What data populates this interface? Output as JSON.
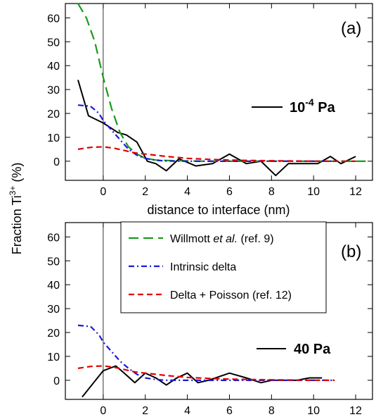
{
  "chart_data": [
    {
      "type": "line",
      "panel": "(a)",
      "condition": "10",
      "condition_exp": "-4",
      "condition_unit": " Pa",
      "xlabel": "distance to interface (nm)",
      "ylabel": "Fraction Ti",
      "ylabel_sup": "3+",
      "ylabel_unit": " (%)",
      "xlim": [
        -1.8,
        12.8
      ],
      "ylim": [
        -8,
        66
      ],
      "xticks": [
        0,
        2,
        4,
        6,
        8,
        10,
        12
      ],
      "yticks": [
        0,
        10,
        20,
        30,
        40,
        50,
        60
      ],
      "interface_x": 0,
      "series": [
        {
          "name": "",
          "style": "solid",
          "color": "#000000",
          "x": [
            -1.2,
            -0.7,
            0.0,
            0.7,
            1.1,
            1.6,
            2.1,
            2.5,
            3.0,
            3.6,
            4.4,
            5.2,
            6.0,
            6.8,
            7.5,
            8.2,
            8.8,
            9.5,
            10.2,
            10.8,
            11.3,
            12.0
          ],
          "y": [
            34,
            19,
            16,
            12,
            11,
            8,
            0,
            -1,
            -4,
            1,
            -2,
            -1,
            3,
            -1,
            0,
            -6,
            -1,
            -1,
            -1,
            2,
            -1,
            2
          ]
        },
        {
          "name": "Willmott et al. (ref. 9)",
          "style": "long-dash",
          "color": "#1a9a1a",
          "x": [
            -1.2,
            -0.8,
            -0.4,
            0.0,
            0.4,
            0.8,
            1.2,
            1.6,
            2.0,
            2.5,
            3.0,
            4.0,
            5.0,
            6.0,
            7.0,
            8.0,
            9.0,
            10.0,
            11.0,
            12.6
          ],
          "y": [
            66,
            60,
            50,
            35,
            22,
            12,
            6,
            3,
            1.2,
            0.5,
            0.3,
            0.1,
            0,
            0,
            0,
            0,
            0,
            0,
            0,
            0
          ]
        },
        {
          "name": "Intrinsic delta",
          "style": "dash-dot",
          "color": "#1a1ad8",
          "x": [
            -1.2,
            -0.6,
            -0.2,
            0.0,
            0.4,
            0.8,
            1.2,
            1.6,
            2.0,
            2.5,
            3.0,
            4.0,
            5.0,
            6.0,
            7.0,
            8.0,
            9.0,
            10.0,
            11.0
          ],
          "y": [
            23.5,
            23,
            20,
            17,
            13,
            9,
            5,
            2.5,
            1.2,
            0.4,
            0.1,
            0,
            0,
            0,
            0,
            0,
            0,
            0,
            0
          ]
        },
        {
          "name": "Delta + Poisson (ref. 12)",
          "style": "dash",
          "color": "#e00000",
          "x": [
            -1.2,
            -0.6,
            0.0,
            0.5,
            1.0,
            1.5,
            2.0,
            3.0,
            4.0,
            5.0,
            6.0,
            7.0,
            8.0,
            9.0,
            10.0,
            11.0,
            12.0
          ],
          "y": [
            5,
            5.8,
            6,
            5.5,
            4.5,
            3.5,
            3,
            2,
            1.2,
            0.8,
            0.5,
            0.3,
            0.2,
            0.1,
            0,
            0,
            0
          ]
        }
      ]
    },
    {
      "type": "line",
      "panel": "(b)",
      "condition": "40 Pa",
      "xlim": [
        -1.8,
        12.8
      ],
      "ylim": [
        -8,
        66
      ],
      "xticks": [
        0,
        2,
        4,
        6,
        8,
        10,
        12
      ],
      "yticks": [
        0,
        10,
        20,
        30,
        40,
        50,
        60
      ],
      "interface_x": 0,
      "series": [
        {
          "name": "",
          "style": "solid",
          "color": "#000000",
          "x": [
            -1.0,
            0.0,
            0.6,
            1.0,
            1.5,
            2.0,
            2.5,
            3.0,
            3.5,
            4.0,
            4.5,
            5.0,
            6.0,
            6.8,
            7.5,
            8.0,
            8.6,
            9.2,
            9.8,
            10.4
          ],
          "y": [
            -7,
            4,
            6,
            3,
            -1,
            3,
            1,
            -2,
            1,
            3,
            -1,
            0,
            3,
            1,
            -1,
            0,
            0,
            0,
            1,
            1
          ]
        },
        {
          "name": "Intrinsic delta",
          "style": "dash-dot",
          "color": "#1a1ad8",
          "x": [
            -1.2,
            -0.6,
            -0.2,
            0.0,
            0.4,
            0.8,
            1.2,
            1.6,
            2.0,
            2.5,
            3.0,
            4.0,
            5.0,
            6.0,
            7.0,
            8.0,
            9.0,
            10.0,
            11.0
          ],
          "y": [
            23,
            22.5,
            19,
            16,
            12,
            8,
            5,
            2.5,
            1,
            0.3,
            0,
            0,
            0,
            0,
            0,
            0,
            0,
            0,
            0
          ]
        },
        {
          "name": "Delta + Poisson (ref. 12)",
          "style": "dash",
          "color": "#e00000",
          "x": [
            -1.2,
            -0.6,
            0.0,
            0.5,
            1.0,
            1.5,
            2.0,
            3.0,
            4.0,
            5.0,
            6.0,
            7.0,
            8.0,
            9.0,
            10.0,
            11.0
          ],
          "y": [
            5,
            5.8,
            6,
            5.5,
            4.5,
            3.5,
            3,
            2,
            1.2,
            0.8,
            0.5,
            0.3,
            0.2,
            0.1,
            0,
            0
          ]
        }
      ]
    }
  ],
  "legend": {
    "items": [
      {
        "text": "Willmott ",
        "italic": "et al.",
        "rest": " (ref. 9)",
        "style": "long-dash",
        "color": "#1a9a1a"
      },
      {
        "text": "Intrinsic delta",
        "italic": "",
        "rest": "",
        "style": "dash-dot",
        "color": "#1a1ad8"
      },
      {
        "text": "Delta + Poisson (ref. 12)",
        "italic": "",
        "rest": "",
        "style": "dash",
        "color": "#e00000"
      }
    ]
  }
}
